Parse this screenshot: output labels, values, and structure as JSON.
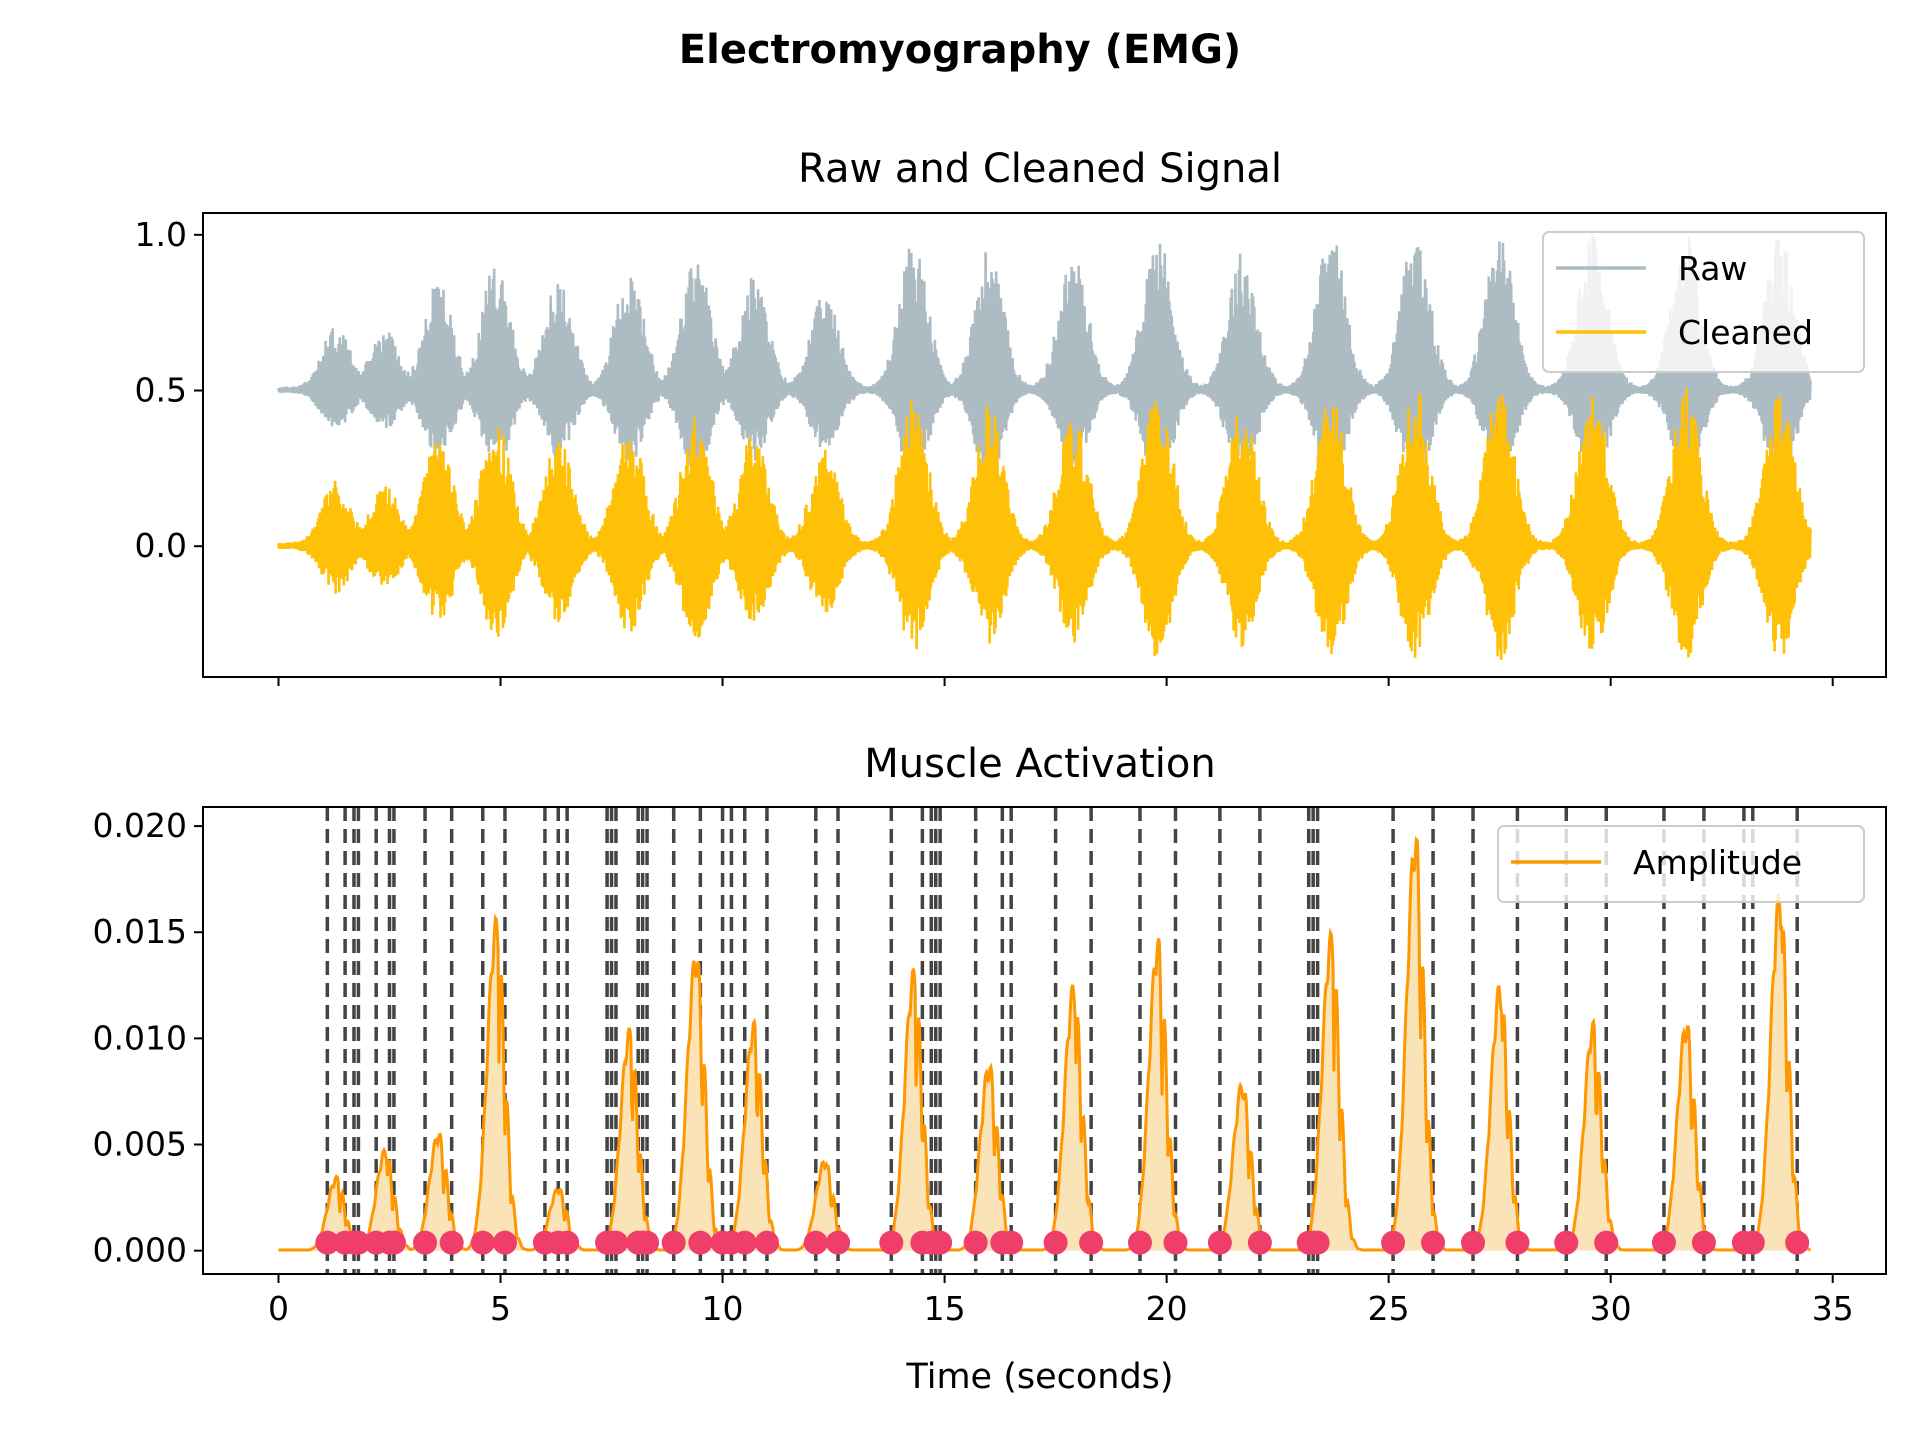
{
  "chart_data": [
    {
      "type": "line",
      "figure_title": "Electromyography (EMG)",
      "title": "Raw and Cleaned Signal",
      "xlabel": "",
      "ylabel": "",
      "xlim": [
        -1.7,
        36.2
      ],
      "ylim": [
        -0.42,
        1.07
      ],
      "yticks": [
        {
          "value": 0.0,
          "label": "0.0"
        },
        {
          "value": 0.5,
          "label": "0.5"
        },
        {
          "value": 1.0,
          "label": "1.0"
        }
      ],
      "xticks": [
        0,
        5,
        10,
        15,
        20,
        25,
        30,
        35
      ],
      "duration_s": 34.5,
      "bursts_s": [
        1.3,
        2.4,
        3.6,
        4.9,
        6.3,
        7.9,
        9.4,
        10.7,
        12.3,
        14.3,
        16.0,
        17.9,
        19.8,
        21.7,
        23.7,
        25.6,
        27.5,
        29.6,
        31.7,
        33.8
      ],
      "burst_peaks": [
        0.7,
        0.69,
        0.84,
        0.9,
        0.84,
        0.88,
        0.92,
        0.86,
        0.8,
        0.97,
        0.95,
        0.93,
        1.0,
        0.94,
        1.0,
        1.0,
        1.0,
        1.0,
        1.0,
        1.0
      ],
      "series": [
        {
          "name": "Raw",
          "color": "#adbbc3",
          "baseline": 0.5
        },
        {
          "name": "Cleaned",
          "color": "#ffc107",
          "baseline": 0.0
        }
      ],
      "legend": "top-right",
      "grid": false
    },
    {
      "type": "line",
      "title": "Muscle Activation",
      "xlabel": "Time (seconds)",
      "ylabel": "",
      "xlim": [
        -1.7,
        36.2
      ],
      "ylim": [
        -0.0011,
        0.0209
      ],
      "yticks": [
        {
          "value": 0.0,
          "label": "0.000"
        },
        {
          "value": 0.005,
          "label": "0.005"
        },
        {
          "value": 0.01,
          "label": "0.010"
        },
        {
          "value": 0.015,
          "label": "0.015"
        },
        {
          "value": 0.02,
          "label": "0.020"
        }
      ],
      "xticks": [
        {
          "value": 0,
          "label": "0"
        },
        {
          "value": 5,
          "label": "5"
        },
        {
          "value": 10,
          "label": "10"
        },
        {
          "value": 15,
          "label": "15"
        },
        {
          "value": 20,
          "label": "20"
        },
        {
          "value": 25,
          "label": "25"
        },
        {
          "value": 30,
          "label": "30"
        },
        {
          "value": 35,
          "label": "35"
        }
      ],
      "series": [
        {
          "name": "Amplitude",
          "color": "#ff9800",
          "fill_color": "#fbe3b8"
        }
      ],
      "amplitude_peaks": [
        {
          "center": 1.3,
          "peak": 0.0035
        },
        {
          "center": 2.4,
          "peak": 0.0048
        },
        {
          "center": 3.6,
          "peak": 0.0056
        },
        {
          "center": 4.9,
          "peak": 0.0157
        },
        {
          "center": 6.3,
          "peak": 0.003
        },
        {
          "center": 7.9,
          "peak": 0.0105
        },
        {
          "center": 9.4,
          "peak": 0.0142
        },
        {
          "center": 10.7,
          "peak": 0.0108
        },
        {
          "center": 12.3,
          "peak": 0.0043
        },
        {
          "center": 14.3,
          "peak": 0.0133
        },
        {
          "center": 16.0,
          "peak": 0.0089
        },
        {
          "center": 17.9,
          "peak": 0.0126
        },
        {
          "center": 19.8,
          "peak": 0.0148
        },
        {
          "center": 21.7,
          "peak": 0.008
        },
        {
          "center": 23.7,
          "peak": 0.015
        },
        {
          "center": 25.6,
          "peak": 0.0198
        },
        {
          "center": 27.5,
          "peak": 0.0126
        },
        {
          "center": 29.6,
          "peak": 0.0108
        },
        {
          "center": 31.7,
          "peak": 0.0109
        },
        {
          "center": 33.8,
          "peak": 0.017
        }
      ],
      "activation_lines": [
        1.1,
        1.5,
        1.7,
        1.8,
        2.2,
        2.5,
        2.6,
        3.3,
        3.9,
        4.6,
        5.1,
        6.0,
        6.3,
        6.5,
        7.4,
        7.5,
        7.6,
        8.1,
        8.2,
        8.3,
        8.9,
        9.5,
        10.0,
        10.2,
        10.5,
        11.0,
        12.1,
        12.6,
        13.8,
        14.5,
        14.7,
        14.8,
        14.9,
        15.7,
        16.3,
        16.5,
        17.5,
        18.3,
        19.4,
        20.2,
        21.2,
        22.1,
        23.2,
        23.3,
        23.4,
        25.1,
        26.0,
        26.9,
        27.9,
        29.0,
        29.9,
        31.2,
        32.1,
        33.0,
        33.2,
        34.2
      ],
      "marker_color": "#f03e6a",
      "line_color": "#444444",
      "legend": "top-right",
      "grid": false
    }
  ]
}
